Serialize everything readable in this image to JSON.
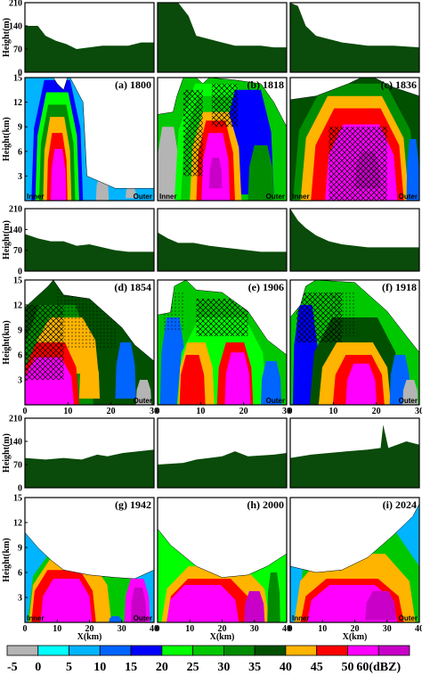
{
  "chart_data": {
    "type": "heatmap",
    "colorbar": {
      "ticks": [
        "-5",
        "0",
        "5",
        "10",
        "15",
        "20",
        "25",
        "30",
        "35",
        "40",
        "45",
        "50",
        "60(dBZ)"
      ],
      "colors": [
        "#b4b4b4",
        "#00ffff",
        "#00b4ff",
        "#0064ff",
        "#0000ff",
        "#00ff00",
        "#00c800",
        "#008c00",
        "#005000",
        "#ffb400",
        "#ff0000",
        "#ff00ff",
        "#c800c8"
      ]
    },
    "terrain": {
      "ylabel": "Height(m)",
      "yticks": [
        "210",
        "140",
        "70",
        "0"
      ],
      "color": "#0a4a0a",
      "ylim": [
        0,
        210
      ]
    },
    "panels": [
      {
        "label": "(a) 1800",
        "row": 0,
        "col": 0,
        "inner": "Inner",
        "outer": "Outer",
        "xticks": [],
        "xlabel": "",
        "terrain": [
          [
            0,
            140
          ],
          [
            5,
            140
          ],
          [
            8,
            110
          ],
          [
            12,
            95
          ],
          [
            16,
            85
          ],
          [
            20,
            70
          ],
          [
            25,
            75
          ],
          [
            30,
            80
          ],
          [
            40,
            80
          ],
          [
            45,
            90
          ],
          [
            50,
            90
          ]
        ],
        "dbz_regions": [
          [
            [
              1,
              1
            ],
            [
              6,
              1
            ],
            [
              6,
              14
            ],
            [
              1,
              14
            ]
          ],
          [
            [
              4,
              1
            ],
            [
              10,
              1
            ],
            [
              12,
              13
            ],
            [
              4,
              14
            ]
          ],
          [
            [
              5,
              1
            ],
            [
              9,
              1
            ],
            [
              10,
              12
            ],
            [
              6,
              12
            ]
          ],
          [
            [
              6,
              1
            ],
            [
              8,
              1
            ],
            [
              9,
              9
            ],
            [
              7,
              9
            ]
          ],
          [
            [
              6.5,
              1
            ],
            [
              7.8,
              1
            ],
            [
              8.4,
              6
            ],
            [
              7,
              6
            ]
          ],
          [
            [
              10,
              1
            ],
            [
              13,
              1
            ],
            [
              13,
              14
            ],
            [
              11,
              14
            ]
          ]
        ]
      },
      {
        "label": "(b) 1818",
        "row": 0,
        "col": 1,
        "inner": "Inner",
        "outer": "Outer",
        "xticks": [],
        "xlabel": "",
        "terrain": [
          [
            0,
            210
          ],
          [
            8,
            210
          ],
          [
            12,
            170
          ],
          [
            15,
            110
          ],
          [
            20,
            100
          ],
          [
            25,
            90
          ],
          [
            30,
            80
          ],
          [
            40,
            80
          ],
          [
            45,
            75
          ],
          [
            50,
            75
          ]
        ],
        "dbz_regions": []
      },
      {
        "label": "(c) 1836",
        "row": 0,
        "col": 2,
        "inner": "Inner",
        "outer": "Outer",
        "xticks": [],
        "xlabel": "",
        "terrain": [
          [
            0,
            210
          ],
          [
            3,
            200
          ],
          [
            6,
            140
          ],
          [
            10,
            110
          ],
          [
            15,
            100
          ],
          [
            20,
            90
          ],
          [
            25,
            85
          ],
          [
            30,
            80
          ],
          [
            40,
            80
          ],
          [
            50,
            75
          ]
        ],
        "dbz_regions": []
      },
      {
        "label": "(d) 1854",
        "row": 1,
        "col": 0,
        "inner": "",
        "outer": "Outer",
        "xticks": [
          "0",
          "10",
          "20",
          "30"
        ],
        "xlabel": "",
        "terrain": [
          [
            0,
            125
          ],
          [
            5,
            110
          ],
          [
            10,
            100
          ],
          [
            15,
            100
          ],
          [
            20,
            85
          ],
          [
            25,
            90
          ],
          [
            30,
            80
          ],
          [
            35,
            70
          ],
          [
            40,
            65
          ],
          [
            50,
            65
          ]
        ],
        "dbz_regions": []
      },
      {
        "label": "(e) 1906",
        "row": 1,
        "col": 1,
        "inner": "",
        "outer": "Outer",
        "xticks": [
          "0",
          "10",
          "20",
          "30"
        ],
        "xlabel": "",
        "terrain": [
          [
            0,
            130
          ],
          [
            4,
            110
          ],
          [
            8,
            95
          ],
          [
            14,
            95
          ],
          [
            20,
            85
          ],
          [
            25,
            80
          ],
          [
            30,
            75
          ],
          [
            40,
            65
          ],
          [
            50,
            65
          ]
        ],
        "dbz_regions": []
      },
      {
        "label": "(f) 1918",
        "row": 1,
        "col": 2,
        "inner": "",
        "outer": "Outer",
        "xticks": [
          "0",
          "10",
          "20",
          "30"
        ],
        "xlabel": "",
        "terrain": [
          [
            0,
            210
          ],
          [
            3,
            170
          ],
          [
            6,
            145
          ],
          [
            10,
            120
          ],
          [
            15,
            100
          ],
          [
            20,
            90
          ],
          [
            30,
            80
          ],
          [
            40,
            80
          ],
          [
            50,
            80
          ]
        ],
        "dbz_regions": []
      },
      {
        "label": "(g) 1942",
        "row": 2,
        "col": 0,
        "inner": "Inner",
        "outer": "Outer",
        "xticks": [
          "0",
          "10",
          "20",
          "30",
          "40"
        ],
        "xlabel": "X(km)",
        "terrain": [
          [
            0,
            90
          ],
          [
            8,
            85
          ],
          [
            15,
            90
          ],
          [
            22,
            85
          ],
          [
            28,
            100
          ],
          [
            32,
            95
          ],
          [
            38,
            105
          ],
          [
            44,
            110
          ],
          [
            50,
            115
          ]
        ],
        "dbz_regions": []
      },
      {
        "label": "(h) 2000",
        "row": 2,
        "col": 1,
        "inner": "",
        "outer": "",
        "xticks": [
          "0",
          "10",
          "20",
          "30",
          "40"
        ],
        "xlabel": "X(km)",
        "terrain": [
          [
            0,
            70
          ],
          [
            10,
            75
          ],
          [
            15,
            85
          ],
          [
            20,
            90
          ],
          [
            25,
            95
          ],
          [
            30,
            110
          ],
          [
            35,
            95
          ],
          [
            45,
            100
          ],
          [
            50,
            105
          ]
        ],
        "dbz_regions": []
      },
      {
        "label": "(i) 2024",
        "row": 2,
        "col": 2,
        "inner": "Inner",
        "outer": "Outer",
        "xticks": [
          "0",
          "10",
          "20",
          "30",
          "40"
        ],
        "xlabel": "X(km)",
        "terrain": [
          [
            0,
            90
          ],
          [
            8,
            100
          ],
          [
            15,
            105
          ],
          [
            22,
            110
          ],
          [
            30,
            115
          ],
          [
            35,
            120
          ],
          [
            36,
            190
          ],
          [
            38,
            120
          ],
          [
            45,
            140
          ],
          [
            50,
            130
          ]
        ],
        "dbz_regions": []
      }
    ],
    "reflectivity": {
      "ylabel": "Height(km)",
      "yticks": [
        "15",
        "12",
        "9",
        "6",
        "3"
      ],
      "ylim": [
        0,
        15
      ]
    }
  }
}
